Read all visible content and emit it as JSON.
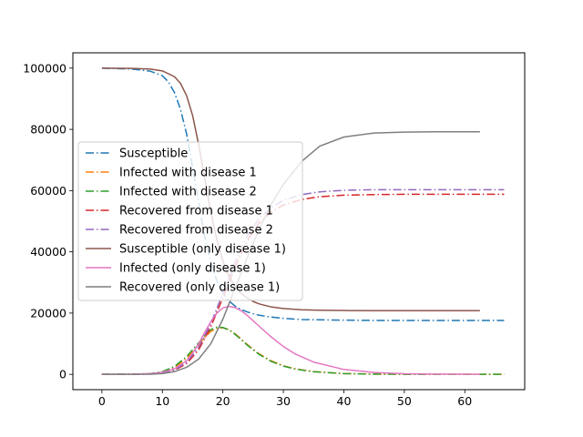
{
  "chart_data": {
    "type": "line",
    "title": "",
    "xlabel": "",
    "ylabel": "",
    "xlim": [
      -4.8,
      69.9
    ],
    "ylim": [
      -5000,
      105000
    ],
    "xticks": [
      0,
      10,
      20,
      30,
      40,
      50,
      60
    ],
    "yticks": [
      0,
      20000,
      40000,
      60000,
      80000,
      100000
    ],
    "xtick_labels": [
      "0",
      "10",
      "20",
      "30",
      "40",
      "50",
      "60"
    ],
    "ytick_labels": [
      "0",
      "20000",
      "40000",
      "60000",
      "80000",
      "100000"
    ],
    "legend": {
      "placement": "center-left"
    },
    "grid": false,
    "series": [
      {
        "name": "Susceptible",
        "color": "#1f77b4",
        "dash": "dashdot",
        "x": [
          0,
          5,
          8,
          10,
          11,
          12,
          13,
          14,
          15,
          16,
          17,
          18,
          19,
          20,
          21,
          22,
          23,
          24,
          25,
          26,
          28,
          30,
          33,
          36,
          40,
          45,
          50,
          55,
          60,
          66.5
        ],
        "y": [
          100000,
          99700,
          99000,
          97500,
          95500,
          92000,
          86500,
          78500,
          67500,
          56000,
          45000,
          37000,
          30500,
          26500,
          24000,
          22300,
          21200,
          20400,
          19800,
          19300,
          18700,
          18300,
          17900,
          17800,
          17700,
          17600,
          17600,
          17600,
          17600,
          17600
        ]
      },
      {
        "name": "Infected with disease 1",
        "color": "#ff7f0e",
        "dash": "dashdot",
        "x": [
          0,
          5,
          8,
          10,
          12,
          14,
          16,
          17,
          18,
          19,
          20,
          21,
          22,
          23,
          24,
          25,
          26,
          28,
          30,
          32,
          35,
          40,
          45,
          50,
          60,
          66.5
        ],
        "y": [
          0,
          50,
          200,
          700,
          2200,
          5200,
          9600,
          12000,
          14000,
          15000,
          15200,
          14600,
          13300,
          11600,
          9800,
          8200,
          6700,
          4400,
          2800,
          1800,
          900,
          250,
          80,
          25,
          5,
          0
        ]
      },
      {
        "name": "Infected with disease 2",
        "color": "#2ca02c",
        "dash": "dashdot",
        "x": [
          0,
          5,
          8,
          10,
          12,
          14,
          16,
          17,
          18,
          19,
          20,
          21,
          22,
          23,
          24,
          25,
          26,
          28,
          30,
          32,
          35,
          40,
          45,
          50,
          60,
          66.5
        ],
        "y": [
          0,
          60,
          250,
          900,
          2600,
          5800,
          10300,
          12700,
          14600,
          15400,
          15300,
          14500,
          13100,
          11400,
          9600,
          8000,
          6500,
          4200,
          2700,
          1700,
          850,
          240,
          75,
          25,
          5,
          0
        ]
      },
      {
        "name": "Recovered from disease 1",
        "color": "#d62728",
        "dash": "dashdot",
        "x": [
          0,
          5,
          8,
          10,
          12,
          14,
          16,
          18,
          20,
          22,
          24,
          26,
          28,
          30,
          33,
          36,
          40,
          45,
          50,
          55,
          60,
          66.5
        ],
        "y": [
          0,
          20,
          100,
          400,
          1300,
          3500,
          8000,
          15500,
          25000,
          35000,
          43500,
          49500,
          53000,
          55300,
          57100,
          58000,
          58500,
          58700,
          58800,
          58800,
          58800,
          58800
        ]
      },
      {
        "name": "Recovered from disease 2",
        "color": "#9467bd",
        "dash": "dashdot",
        "x": [
          0,
          5,
          8,
          10,
          12,
          14,
          16,
          18,
          20,
          22,
          24,
          26,
          28,
          30,
          33,
          36,
          40,
          45,
          50,
          55,
          60,
          66.5
        ],
        "y": [
          0,
          25,
          120,
          450,
          1500,
          3900,
          8800,
          16500,
          26500,
          36500,
          45000,
          51000,
          54500,
          56800,
          58700,
          59600,
          60100,
          60300,
          60300,
          60300,
          60300,
          60300
        ]
      },
      {
        "name": "Susceptible (only disease 1)",
        "color": "#8c564b",
        "dash": "solid",
        "x": [
          0,
          5,
          8,
          10,
          12,
          13,
          14,
          15,
          16,
          17,
          18,
          19,
          20,
          21,
          22,
          23,
          24,
          25,
          26,
          28,
          30,
          33,
          36,
          40,
          45,
          50,
          55,
          62.5
        ],
        "y": [
          100000,
          99900,
          99700,
          99100,
          97200,
          95000,
          91000,
          84500,
          75000,
          64000,
          53000,
          44000,
          37000,
          32000,
          28700,
          26500,
          25000,
          23800,
          23000,
          22000,
          21500,
          21100,
          20950,
          20850,
          20800,
          20800,
          20800,
          20800
        ]
      },
      {
        "name": "Infected (only disease 1)",
        "color": "#e377c2",
        "dash": "solid",
        "x": [
          0,
          5,
          8,
          10,
          12,
          14,
          15,
          16,
          17,
          18,
          19,
          20,
          21,
          22,
          23,
          24,
          25,
          26,
          28,
          30,
          32,
          35,
          40,
          45,
          50,
          55,
          62.5
        ],
        "y": [
          0,
          60,
          250,
          700,
          1800,
          4400,
          6900,
          10000,
          13700,
          17200,
          20000,
          21700,
          22200,
          21800,
          20800,
          19300,
          17500,
          15700,
          12200,
          9100,
          6600,
          4000,
          1600,
          600,
          200,
          80,
          20
        ]
      },
      {
        "name": "Recovered (only disease 1)",
        "color": "#7f7f7f",
        "dash": "solid",
        "x": [
          0,
          5,
          8,
          10,
          12,
          14,
          16,
          18,
          20,
          22,
          24,
          26,
          28,
          30,
          33,
          36,
          40,
          45,
          50,
          55,
          62.5
        ],
        "y": [
          0,
          20,
          60,
          250,
          900,
          2300,
          5000,
          10000,
          18000,
          28000,
          38000,
          47500,
          55500,
          62000,
          69500,
          74500,
          77500,
          78800,
          79100,
          79200,
          79200
        ]
      }
    ]
  }
}
